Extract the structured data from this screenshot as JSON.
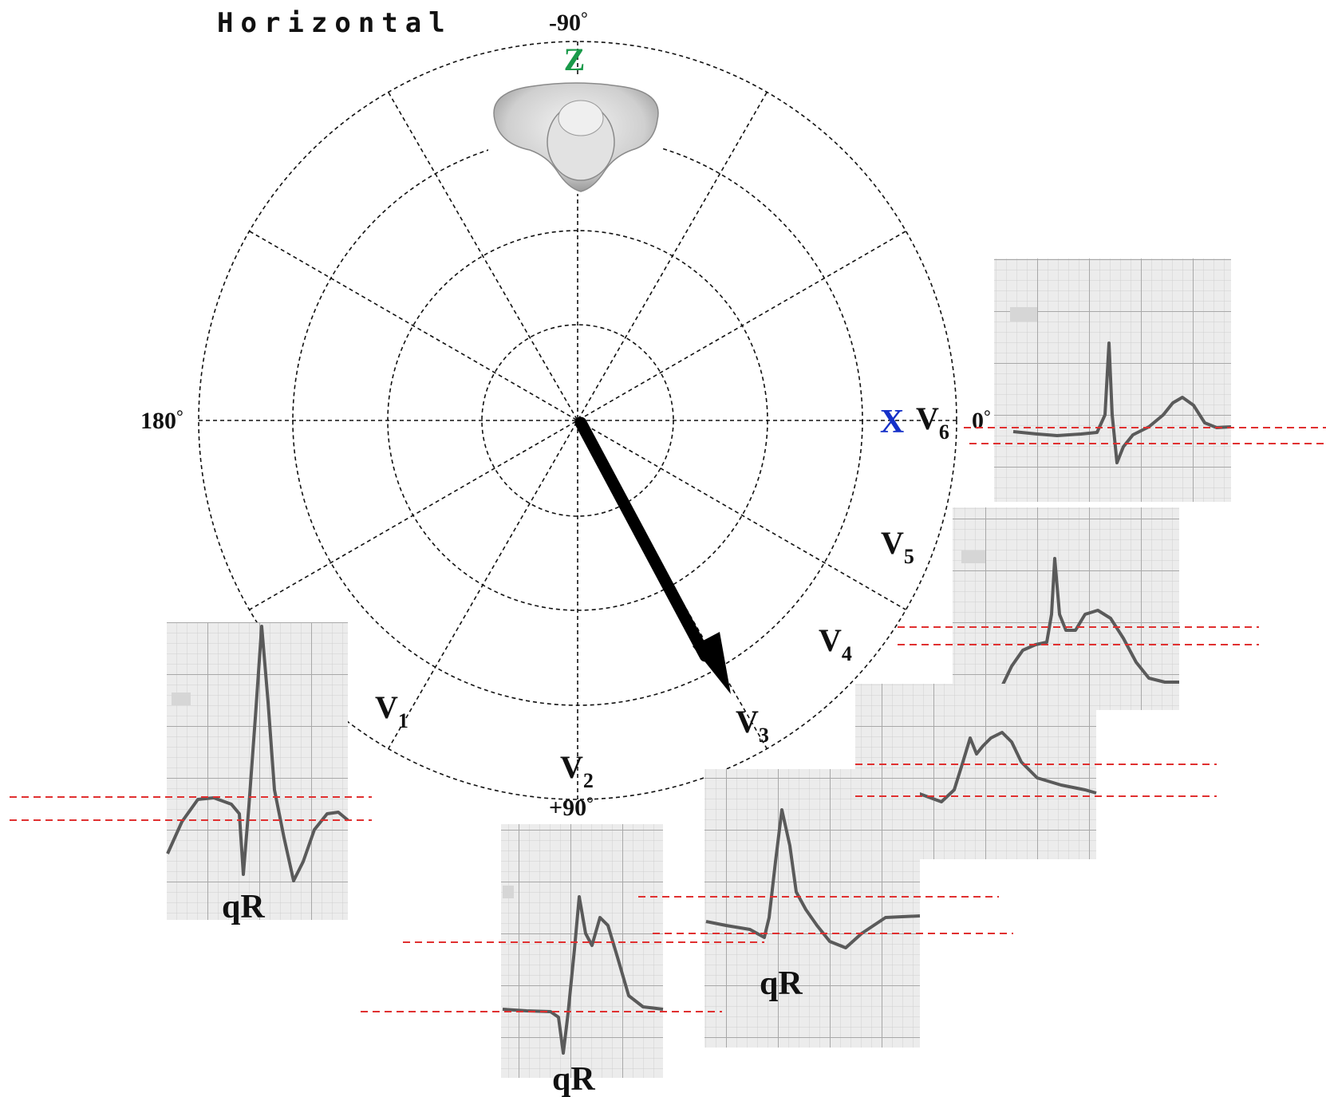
{
  "title": "Horizontal",
  "angles": {
    "top": "-90",
    "bottom": "+90",
    "left": "180",
    "right": "0",
    "degree_mark": "°"
  },
  "axes": {
    "z": "Z",
    "x": "X"
  },
  "leads": [
    {
      "id": "V1",
      "letter": "V",
      "sub": "1"
    },
    {
      "id": "V2",
      "letter": "V",
      "sub": "2"
    },
    {
      "id": "V3",
      "letter": "V",
      "sub": "3"
    },
    {
      "id": "V4",
      "letter": "V",
      "sub": "4"
    },
    {
      "id": "V5",
      "letter": "V",
      "sub": "5"
    },
    {
      "id": "V6",
      "letter": "V",
      "sub": "6"
    }
  ],
  "strip_labels": {
    "v1": "qR",
    "v2": "qR",
    "v3": "qR"
  },
  "colors": {
    "z_axis": "#1a9a4a",
    "x_axis": "#1530c8",
    "baseline_guides": "#e03030",
    "ecg_grid_bg": "#ececec",
    "ecg_trace": "#555555"
  },
  "icons": {
    "brain": "brain-icon",
    "vector": "heart-vector-arrow"
  }
}
